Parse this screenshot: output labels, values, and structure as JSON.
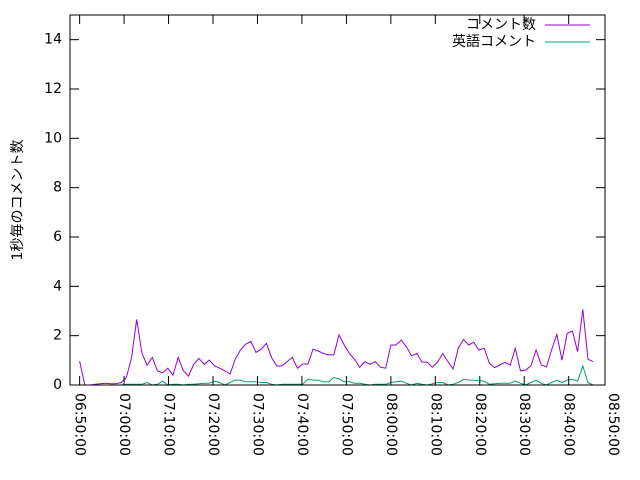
{
  "chart_data": {
    "type": "line",
    "title": "",
    "xlabel": "",
    "ylabel": "1秒毎のコメント数",
    "ylim": [
      0,
      15
    ],
    "xlim": [
      "06:47:50",
      "08:48:10"
    ],
    "x_ticks": [
      "06:50:00",
      "07:00:00",
      "07:10:00",
      "07:20:00",
      "07:30:00",
      "07:40:00",
      "07:50:00",
      "08:00:00",
      "08:10:00",
      "08:20:00",
      "08:30:00",
      "08:40:00",
      "08:50:00"
    ],
    "y_ticks": [
      "0",
      "2",
      "4",
      "6",
      "8",
      "10",
      "12",
      "14"
    ],
    "grid": false,
    "legend_position": "top-right",
    "x": [
      "06:50:00",
      "06:51:10",
      "06:52:20",
      "06:53:30",
      "06:54:40",
      "06:55:50",
      "06:57:00",
      "06:58:10",
      "06:59:20",
      "07:00:30",
      "07:01:40",
      "07:02:50",
      "07:04:00",
      "07:05:10",
      "07:06:20",
      "07:07:30",
      "07:08:40",
      "07:09:50",
      "07:11:00",
      "07:12:10",
      "07:13:20",
      "07:14:30",
      "07:15:40",
      "07:16:50",
      "07:18:00",
      "07:19:10",
      "07:20:20",
      "07:21:30",
      "07:22:40",
      "07:23:50",
      "07:25:00",
      "07:26:10",
      "07:27:20",
      "07:28:30",
      "07:29:40",
      "07:30:50",
      "07:32:00",
      "07:33:10",
      "07:34:20",
      "07:35:30",
      "07:36:40",
      "07:37:50",
      "07:39:00",
      "07:40:10",
      "07:41:20",
      "07:42:30",
      "07:43:40",
      "07:44:50",
      "07:46:00",
      "07:47:10",
      "07:48:20",
      "07:49:30",
      "07:50:40",
      "07:51:50",
      "07:53:00",
      "07:54:10",
      "07:55:20",
      "07:56:30",
      "07:57:40",
      "07:58:50",
      "08:00:00",
      "08:01:10",
      "08:02:20",
      "08:03:30",
      "08:04:40",
      "08:05:50",
      "08:07:00",
      "08:08:10",
      "08:09:20",
      "08:10:30",
      "08:11:40",
      "08:12:50",
      "08:14:00",
      "08:15:10",
      "08:16:20",
      "08:17:30",
      "08:18:40",
      "08:19:50",
      "08:21:00",
      "08:22:10",
      "08:23:20",
      "08:24:30",
      "08:25:40",
      "08:26:50",
      "08:28:00",
      "08:29:10",
      "08:30:20",
      "08:31:30",
      "08:32:40",
      "08:33:50",
      "08:35:00",
      "08:36:10",
      "08:37:20",
      "08:38:30",
      "08:39:40",
      "08:40:50",
      "08:42:00",
      "08:43:10",
      "08:44:20",
      "08:45:30"
    ],
    "series": [
      {
        "name": "コメント数",
        "color": "#9400d3",
        "values": [
          0.97,
          0,
          0,
          0.03,
          0.05,
          0.07,
          0.05,
          0.05,
          0.1,
          0.3,
          1.1,
          2.66,
          1.3,
          0.8,
          1.12,
          0.57,
          0.5,
          0.68,
          0.4,
          1.12,
          0.57,
          0.36,
          0.84,
          1.08,
          0.84,
          1.01,
          0.78,
          0.68,
          0.57,
          0.45,
          1.04,
          1.42,
          1.65,
          1.77,
          1.32,
          1.45,
          1.69,
          1.11,
          0.77,
          0.77,
          0.95,
          1.12,
          0.68,
          0.85,
          0.85,
          1.45,
          1.38,
          1.28,
          1.22,
          1.22,
          2.03,
          1.62,
          1.28,
          1.04,
          0.72,
          0.95,
          0.84,
          0.95,
          0.72,
          0.68,
          1.62,
          1.62,
          1.82,
          1.55,
          1.18,
          1.28,
          0.93,
          0.93,
          0.72,
          0.92,
          1.28,
          0.95,
          0.65,
          1.49,
          1.85,
          1.62,
          1.73,
          1.42,
          1.49,
          0.88,
          0.7,
          0.81,
          0.92,
          0.81,
          1.49,
          0.57,
          0.61,
          0.77,
          1.42,
          0.81,
          0.74,
          1.42,
          2.05,
          1.01,
          2.09,
          2.19,
          1.35,
          3.07,
          1.04,
          0.95
        ]
      },
      {
        "name": "英語コメント",
        "color": "#009e73",
        "values": [
          0,
          0,
          0,
          0,
          0,
          0,
          0,
          0,
          0,
          0.03,
          0.03,
          0.03,
          0.03,
          0.1,
          0,
          0.03,
          0.16,
          0,
          0.03,
          0.03,
          0,
          0.03,
          0.03,
          0.05,
          0.07,
          0.07,
          0.16,
          0.1,
          0,
          0.1,
          0.2,
          0.2,
          0.13,
          0.13,
          0.13,
          0.1,
          0.1,
          0.03,
          0,
          0.03,
          0.03,
          0.03,
          0.03,
          0.03,
          0.23,
          0.2,
          0.2,
          0.13,
          0.12,
          0.31,
          0.25,
          0.13,
          0.13,
          0.07,
          0.07,
          0.03,
          0,
          0.03,
          0.03,
          0.03,
          0.1,
          0.13,
          0.16,
          0.07,
          0,
          0.07,
          0.03,
          0,
          0.05,
          0.1,
          0.1,
          0,
          0.03,
          0.1,
          0.23,
          0.2,
          0.2,
          0.18,
          0.16,
          0.03,
          0.05,
          0.07,
          0.07,
          0.07,
          0.16,
          0.07,
          0,
          0.1,
          0.19,
          0.07,
          0,
          0.1,
          0.19,
          0.1,
          0.2,
          0.23,
          0.16,
          0.77,
          0.1,
          0
        ]
      }
    ]
  }
}
